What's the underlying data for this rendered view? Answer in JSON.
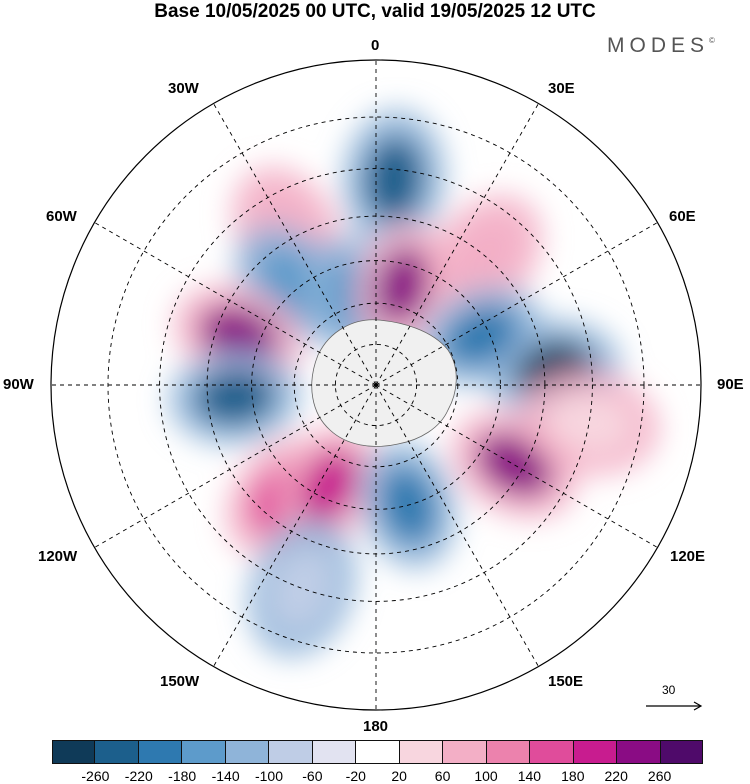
{
  "title": "Base 10/05/2025 00 UTC, valid 19/05/2025 12 UTC",
  "brand": "MODES",
  "brand_mark": "©",
  "longitude_labels": {
    "top": "0",
    "bottom": "180",
    "left": "90W",
    "right": "90E",
    "top_left": "30W",
    "top_right": "30E",
    "upper_left": "60W",
    "upper_right": "60E",
    "lower_left": "120W",
    "lower_right": "120E",
    "bottom_left": "150W",
    "bottom_right": "150E"
  },
  "reference_vector_label": "30",
  "colorbar": {
    "ticks": [
      "-260",
      "-220",
      "-180",
      "-140",
      "-100",
      "-60",
      "-20",
      "20",
      "60",
      "100",
      "140",
      "180",
      "220",
      "260"
    ],
    "colors": [
      "#0f3a58",
      "#1c5f8c",
      "#2e79b0",
      "#5d9bcb",
      "#8fb4d9",
      "#bfcde6",
      "#e2e3f1",
      "#ffffff",
      "#f8d6df",
      "#f3afc6",
      "#ec82ad",
      "#e04c9b",
      "#c81c8f",
      "#8a0c84",
      "#4f0a6a"
    ]
  },
  "map": {
    "projection": "polar stereographic, South Pole centred",
    "field": "geopotential height anomaly",
    "land_color": "#f0f0f0",
    "blobs": [
      {
        "type": "positive",
        "color": "#f3afc6",
        "lon": -30,
        "lat": -48
      },
      {
        "type": "negative",
        "color": "#1c5f8c",
        "lon": 5,
        "lat": -42
      },
      {
        "type": "negative",
        "color": "#5d9bcb",
        "lon": -40,
        "lat": -58
      },
      {
        "type": "negative",
        "color": "#5d9bcb",
        "lon": -15,
        "lat": -68
      },
      {
        "type": "positive",
        "color": "#8a0c84",
        "lon": 15,
        "lat": -65
      },
      {
        "type": "positive",
        "color": "#f3afc6",
        "lon": 40,
        "lat": -50
      },
      {
        "type": "positive",
        "color": "#8a0c84",
        "lon": -70,
        "lat": -55
      },
      {
        "type": "negative",
        "color": "#1c5f8c",
        "lon": -95,
        "lat": -56
      },
      {
        "type": "negative",
        "color": "#0f3a58",
        "lon": 85,
        "lat": -48
      },
      {
        "type": "negative",
        "color": "#2e79b0",
        "lon": 65,
        "lat": -62
      },
      {
        "type": "positive",
        "color": "#8a0c84",
        "lon": 120,
        "lat": -52
      },
      {
        "type": "positive",
        "color": "#e04c9b",
        "lon": -140,
        "lat": -55
      },
      {
        "type": "positive",
        "color": "#c81c8f",
        "lon": -155,
        "lat": -63
      },
      {
        "type": "negative",
        "color": "#2e79b0",
        "lon": 165,
        "lat": -60
      },
      {
        "type": "positive",
        "color": "#f8d6df",
        "lon": 100,
        "lat": -40
      },
      {
        "type": "negative",
        "color": "#bfcde6",
        "lon": -160,
        "lat": -40
      }
    ]
  }
}
